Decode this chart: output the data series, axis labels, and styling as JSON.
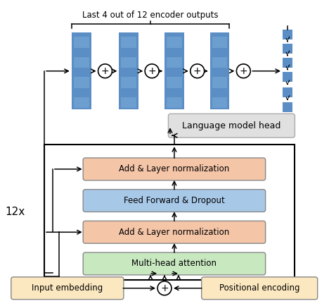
{
  "title": "Last 4 out of 12 encoder outputs",
  "box_colors": {
    "add_layer_norm": "#f5c5a8",
    "feed_forward": "#a8c8e8",
    "multi_head": "#c8e8c0",
    "language_model": "#e0e0e0",
    "embedding": "#fce8c0"
  },
  "encoder_color": "#5b8ec5",
  "background": "#ffffff",
  "label_12x": "12x",
  "label_language": "Language model head",
  "label_add_norm1": "Add & Layer normalization",
  "label_feed_forward": "Feed Forward & Dropout",
  "label_add_norm2": "Add & Layer normalization",
  "label_multi_head": "Multi-head attention",
  "label_input": "Input embedding",
  "label_positional": "Positional encoding",
  "fig_w": 4.68,
  "fig_h": 4.34,
  "dpi": 100
}
